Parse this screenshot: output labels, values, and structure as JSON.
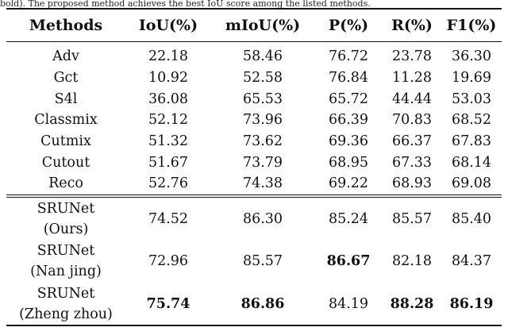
{
  "caption_fragment": "bold). The proposed method achieves the best IoU score among the listed methods.",
  "headers": [
    "Methods",
    "IoU(%)",
    "mIoU(%)",
    "P(%)",
    "R(%)",
    "F1(%)"
  ],
  "baseline_rows": [
    [
      "Adv",
      "22.18",
      "58.46",
      "76.72",
      "23.78",
      "36.30"
    ],
    [
      "Gct",
      "10.92",
      "52.58",
      "76.84",
      "11.28",
      "19.69"
    ],
    [
      "S4l",
      "36.08",
      "65.53",
      "65.72",
      "44.44",
      "53.03"
    ],
    [
      "Classmix",
      "52.12",
      "73.96",
      "66.39",
      "70.83",
      "68.52"
    ],
    [
      "Cutmix",
      "51.32",
      "73.62",
      "69.36",
      "66.37",
      "67.83"
    ],
    [
      "Cutout",
      "51.67",
      "73.79",
      "68.95",
      "67.33",
      "68.14"
    ],
    [
      "Reco",
      "52.76",
      "74.38",
      "69.22",
      "68.93",
      "69.08"
    ]
  ],
  "proposed_rows": [
    {
      "name": "SRUNet",
      "variant": "(Ours)",
      "values": [
        "74.52",
        "86.30",
        "85.24",
        "85.57",
        "85.40"
      ],
      "bold": [
        false,
        false,
        false,
        false,
        false
      ]
    },
    {
      "name": "SRUNet",
      "variant": "(Nan jing)",
      "values": [
        "72.96",
        "85.57",
        "86.67",
        "82.18",
        "84.37"
      ],
      "bold": [
        false,
        false,
        true,
        false,
        false
      ]
    },
    {
      "name": "SRUNet",
      "variant": "(Zheng zhou)",
      "values": [
        "75.74",
        "86.86",
        "84.19",
        "88.28",
        "86.19"
      ],
      "bold": [
        true,
        true,
        false,
        true,
        true
      ]
    }
  ]
}
